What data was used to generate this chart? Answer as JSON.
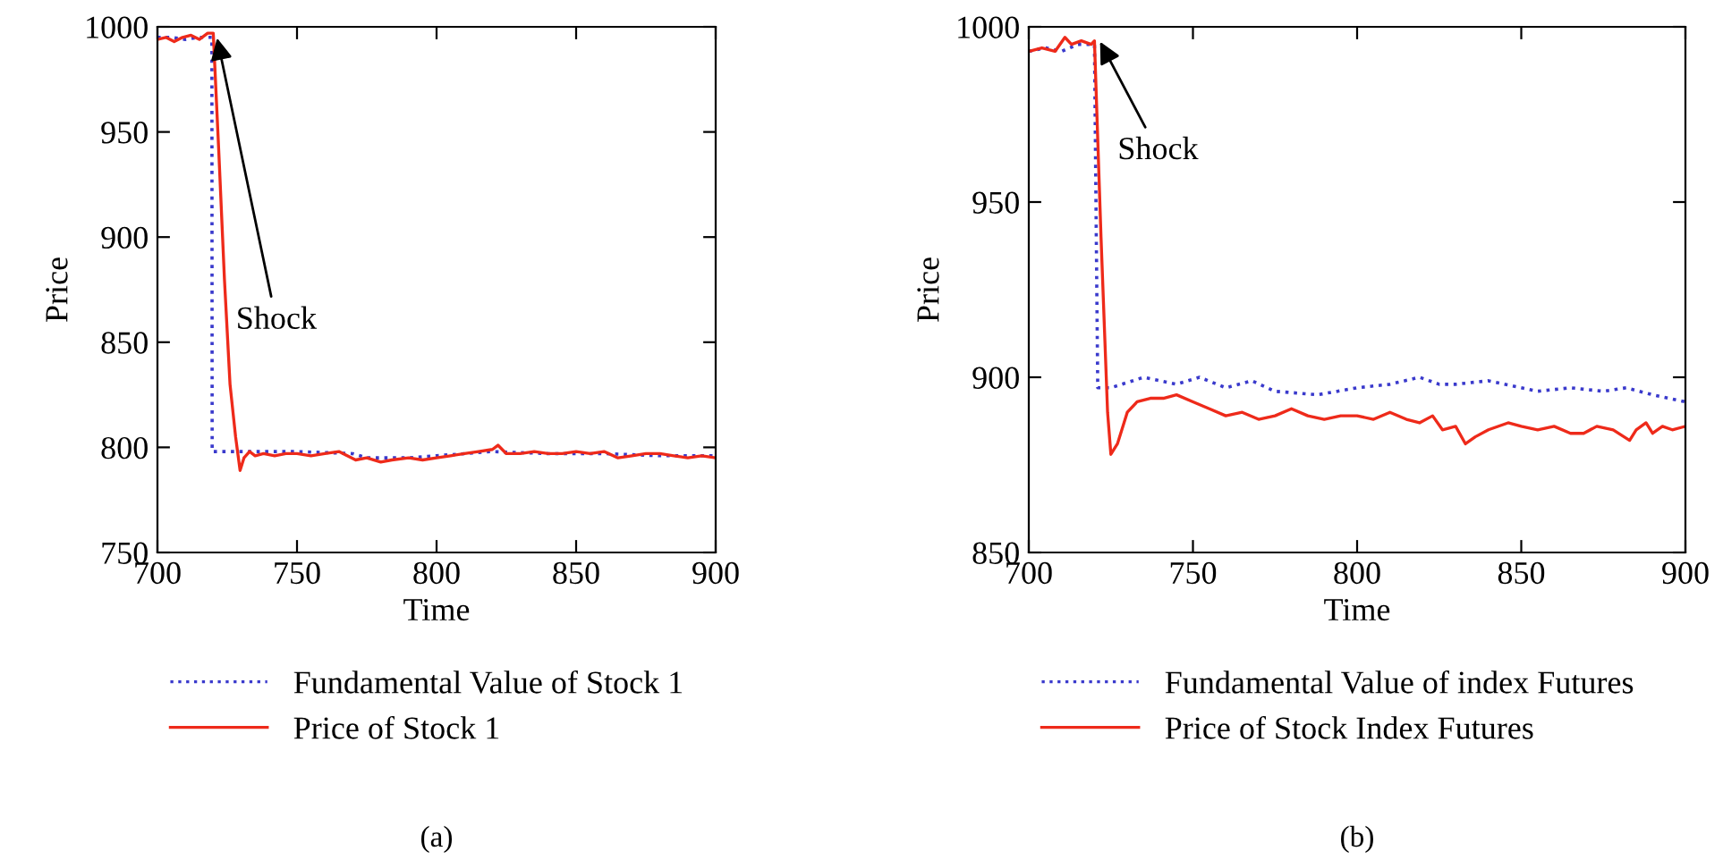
{
  "chart_data": [
    {
      "type": "line",
      "xlabel": "Time",
      "ylabel": "Price",
      "xlim": [
        700,
        900
      ],
      "ylim": [
        750,
        1000
      ],
      "xticks": [
        700,
        750,
        800,
        850,
        900
      ],
      "yticks": [
        750,
        800,
        850,
        900,
        950,
        1000
      ],
      "grid": false,
      "legend": "bottom",
      "annotations": [
        {
          "text": "Shock",
          "x": 721,
          "y": 997
        },
        "(a)"
      ],
      "series": [
        {
          "name": "Fundamental Value of Stock 1",
          "color": "#3a3acc",
          "line_style": "dotted",
          "x": [
            700,
            705,
            710,
            715,
            719.5,
            719.6,
            730,
            750,
            770,
            775,
            790,
            800,
            820,
            840,
            860,
            880,
            900
          ],
          "values": [
            995,
            995,
            994,
            995,
            995,
            798,
            798,
            798,
            797,
            795,
            795,
            796,
            798,
            797,
            797,
            796,
            796
          ]
        },
        {
          "name": "Price of Stock 1",
          "color": "#ee2a1a",
          "line_style": "solid",
          "x": [
            700,
            703,
            706,
            709,
            712,
            715,
            718,
            720,
            722,
            724,
            726,
            728,
            729.6,
            731,
            733,
            735,
            738,
            742,
            746,
            750,
            755,
            760,
            765,
            768,
            771,
            775,
            780,
            784,
            790,
            795,
            800,
            805,
            810,
            815,
            820,
            822,
            825,
            830,
            835,
            840,
            845,
            850,
            855,
            860,
            865,
            870,
            875,
            880,
            885,
            890,
            895,
            900
          ],
          "values": [
            994,
            995,
            993,
            995,
            996,
            994,
            997,
            997,
            940,
            880,
            830,
            805,
            789,
            795,
            798,
            796,
            797,
            796,
            797,
            797,
            796,
            797,
            798,
            796,
            794,
            795,
            793,
            794,
            795,
            794,
            795,
            796,
            797,
            798,
            799,
            801,
            797,
            797,
            798,
            797,
            797,
            798,
            797,
            798,
            795,
            796,
            797,
            797,
            796,
            795,
            796,
            795
          ]
        }
      ]
    },
    {
      "type": "line",
      "xlabel": "Time",
      "ylabel": "Price",
      "xlim": [
        700,
        900
      ],
      "ylim": [
        850,
        1000
      ],
      "xticks": [
        700,
        750,
        800,
        850,
        900
      ],
      "yticks": [
        850,
        900,
        950,
        1000
      ],
      "grid": false,
      "legend": "bottom",
      "annotations": [
        {
          "text": "Shock",
          "x": 721,
          "y": 997
        },
        "(b)"
      ],
      "series": [
        {
          "name": "Fundamental Value of index Futures",
          "color": "#3a3acc",
          "line_style": "dotted",
          "x": [
            700,
            705,
            710,
            715,
            720,
            721,
            725,
            735,
            745,
            752,
            760,
            768,
            775,
            788,
            800,
            810,
            819,
            825,
            830,
            840,
            850,
            855,
            865,
            875,
            882,
            890,
            900
          ],
          "values": [
            993,
            994,
            993,
            995,
            995,
            897,
            897,
            900,
            898,
            900,
            897,
            899,
            896,
            895,
            897,
            898,
            900,
            898,
            898,
            899,
            897,
            896,
            897,
            896,
            897,
            895,
            893
          ]
        },
        {
          "name": "Price of Stock Index Futures",
          "color": "#ee2a1a",
          "line_style": "solid",
          "x": [
            700,
            704,
            708,
            711,
            713,
            716,
            719,
            720,
            722,
            724,
            725,
            727,
            730,
            733,
            737,
            741,
            745,
            750,
            755,
            760,
            765,
            770,
            775,
            780,
            785,
            790,
            795,
            800,
            805,
            810,
            815,
            819,
            823,
            826,
            830,
            833,
            836,
            840,
            846,
            850,
            855,
            860,
            865,
            869,
            873,
            878,
            883,
            885,
            888,
            890,
            893,
            896,
            900
          ],
          "values": [
            993,
            994,
            993,
            997,
            995,
            996,
            995,
            996,
            940,
            890,
            878,
            881,
            890,
            893,
            894,
            894,
            895,
            893,
            891,
            889,
            890,
            888,
            889,
            891,
            889,
            888,
            889,
            889,
            888,
            890,
            888,
            887,
            889,
            885,
            886,
            881,
            883,
            885,
            887,
            886,
            885,
            886,
            884,
            884,
            886,
            885,
            882,
            885,
            887,
            884,
            886,
            885,
            886
          ]
        }
      ]
    }
  ]
}
